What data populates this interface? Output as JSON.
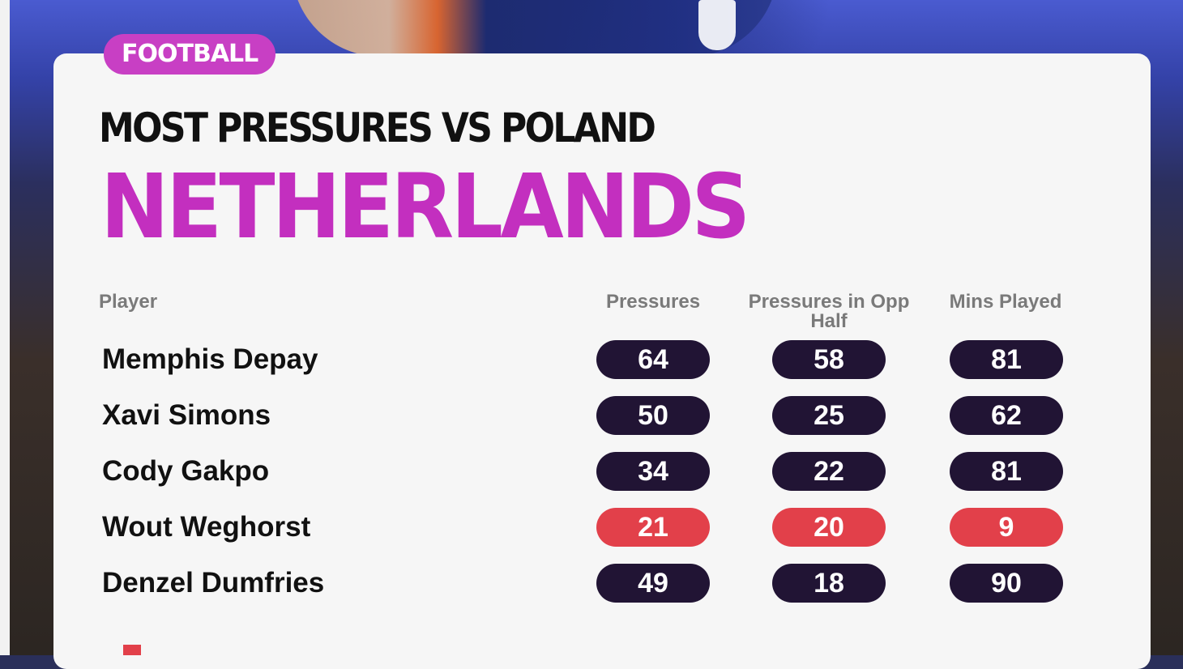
{
  "badge": "FOOTBALL",
  "subtitle": "MOST PRESSURES VS POLAND",
  "title": "NETHERLANDS",
  "colors": {
    "accent": "#c32fbf",
    "pill_default": "#211434",
    "pill_highlight": "#e2404a"
  },
  "chart_data": {
    "type": "table",
    "columns": [
      "Player",
      "Pressures",
      "Pressures in Opp Half",
      "Mins Played"
    ],
    "rows": [
      {
        "player": "Memphis Depay",
        "values": [
          "64",
          "58",
          "81"
        ],
        "highlight": false
      },
      {
        "player": "Xavi Simons",
        "values": [
          "50",
          "25",
          "62"
        ],
        "highlight": false
      },
      {
        "player": "Cody Gakpo",
        "values": [
          "34",
          "22",
          "81"
        ],
        "highlight": false
      },
      {
        "player": "Wout Weghorst",
        "values": [
          "21",
          "20",
          "9"
        ],
        "highlight": true
      },
      {
        "player": "Denzel Dumfries",
        "values": [
          "49",
          "18",
          "90"
        ],
        "highlight": false
      }
    ]
  }
}
